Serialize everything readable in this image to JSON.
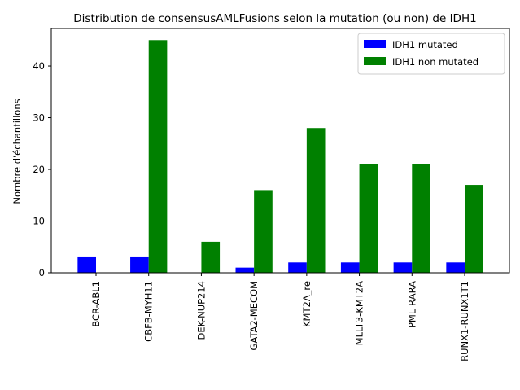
{
  "chart_data": {
    "type": "bar",
    "title": "Distribution de consensusAMLFusions selon la mutation (ou non) de IDH1",
    "xlabel": "",
    "ylabel": "Nombre d'échantillons",
    "categories": [
      "BCR-ABL1",
      "CBFB-MYH11",
      "DEK-NUP214",
      "GATA2-MECOM",
      "KMT2A_re",
      "MLLT3-KMT2A",
      "PML-RARA",
      "RUNX1-RUNX1T1"
    ],
    "series": [
      {
        "name": "IDH1 mutated",
        "color": "#0000ff",
        "values": [
          3,
          3,
          0,
          1,
          2,
          2,
          2,
          2
        ]
      },
      {
        "name": "IDH1 non mutated",
        "color": "#008000",
        "values": [
          0,
          45,
          6,
          16,
          28,
          21,
          21,
          17
        ]
      }
    ],
    "ylim": [
      0,
      47.25
    ],
    "yticks": [
      0,
      10,
      20,
      30,
      40
    ],
    "grid": false,
    "legend_position": "top-right"
  }
}
